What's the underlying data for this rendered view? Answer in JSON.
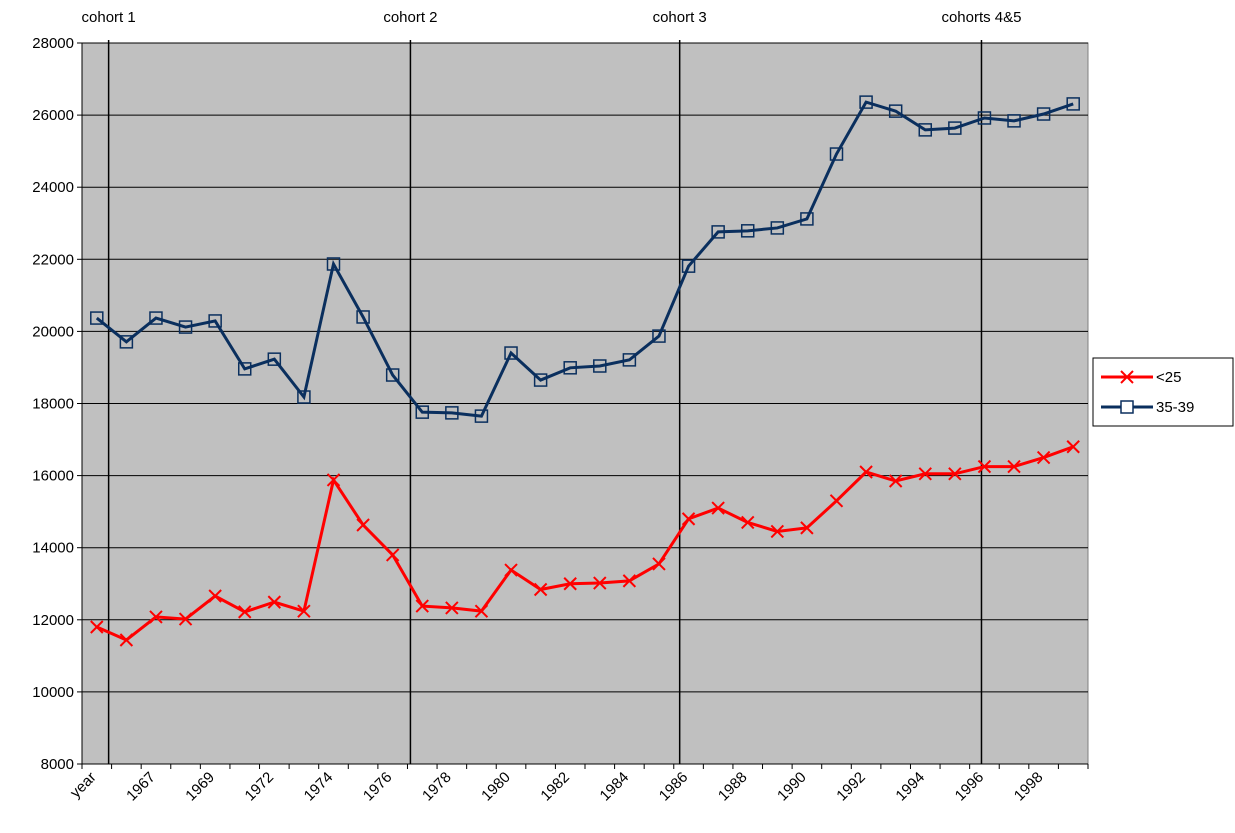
{
  "chart_data": {
    "type": "line",
    "categories": [
      "year",
      null,
      "1967",
      null,
      "1969",
      null,
      "1972",
      null,
      "1974",
      null,
      "1976",
      null,
      "1978",
      null,
      "1980",
      null,
      "1982",
      null,
      "1984",
      null,
      "1986",
      null,
      "1988",
      null,
      "1990",
      null,
      "1992",
      null,
      "1994",
      null,
      "1996",
      null,
      "1998",
      null
    ],
    "series": [
      {
        "name": "<25",
        "color": "#ff0000",
        "marker": "x",
        "values": [
          11800,
          11440,
          12080,
          12020,
          12660,
          12220,
          12490,
          12240,
          15880,
          14630,
          13800,
          12380,
          12330,
          12240,
          13380,
          12840,
          13000,
          13020,
          13080,
          13550,
          14800,
          15100,
          14700,
          14450,
          14550,
          15300,
          16100,
          15850,
          16050,
          16050,
          16250,
          16250,
          16500,
          16800
        ]
      },
      {
        "name": "35-39",
        "color": "#0a2f5e",
        "marker": "square",
        "values": [
          20370,
          19710,
          20370,
          20120,
          20290,
          18960,
          19230,
          18180,
          21870,
          20400,
          18790,
          17760,
          17740,
          17650,
          19400,
          18650,
          18990,
          19040,
          19210,
          19870,
          21810,
          22760,
          22790,
          22870,
          23120,
          24920,
          26360,
          26110,
          25590,
          25640,
          25920,
          25840,
          26030,
          26310
        ]
      }
    ],
    "annotations": [
      "cohort 1",
      "cohort 2",
      "cohort 3",
      "cohorts 4&5"
    ],
    "ylim": [
      8000,
      28000
    ],
    "yticks": [
      8000,
      10000,
      12000,
      14000,
      16000,
      18000,
      20000,
      22000,
      24000,
      26000,
      28000
    ],
    "grid": true,
    "legend": "right",
    "plot_background": "#c0c0c0"
  }
}
